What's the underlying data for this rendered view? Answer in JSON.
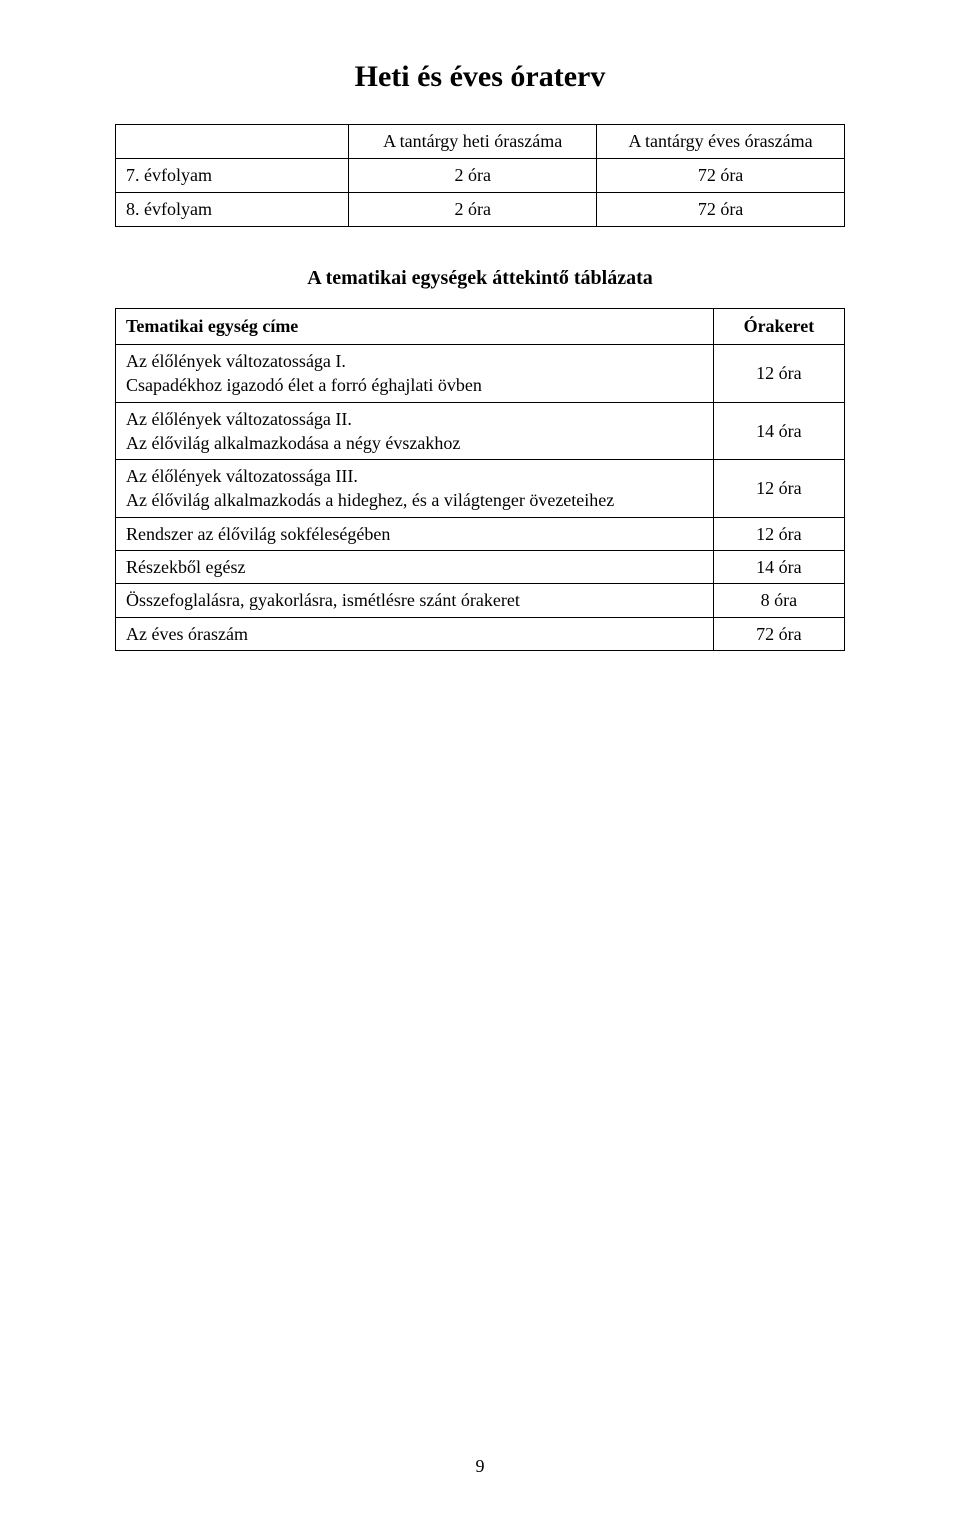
{
  "title": "Heti és éves óraterv",
  "hoursTable": {
    "headers": [
      "",
      "A tantárgy heti óraszáma",
      "A tantárgy éves óraszáma"
    ],
    "rows": [
      {
        "label": "7. évfolyam",
        "weekly": "2 óra",
        "yearly": "72 óra"
      },
      {
        "label": "8. évfolyam",
        "weekly": "2 óra",
        "yearly": "72 óra"
      }
    ]
  },
  "subtitle": "A tematikai egységek áttekintő táblázata",
  "topicsTable": {
    "headers": {
      "topic": "Tematikai egység címe",
      "time": "Órakeret"
    },
    "rows": [
      {
        "line1": "Az élőlények változatossága I.",
        "line2": "Csapadékhoz igazodó élet a forró éghajlati övben",
        "time": "12 óra"
      },
      {
        "line1": "Az élőlények változatossága II.",
        "line2": "Az élővilág alkalmazkodása a négy évszakhoz",
        "time": "14 óra"
      },
      {
        "line1": "Az élőlények változatossága III.",
        "line2": "Az élővilág alkalmazkodás a hideghez, és a világtenger övezeteihez",
        "time": "12 óra"
      },
      {
        "line1": "Rendszer az élővilág sokféleségében",
        "line2": "",
        "time": "12 óra"
      },
      {
        "line1": "Részekből egész",
        "line2": "",
        "time": "14 óra"
      },
      {
        "line1": "Összefoglalásra, gyakorlásra, ismétlésre szánt órakeret",
        "line2": "",
        "time": "8 óra"
      },
      {
        "line1": "Az éves óraszám",
        "line2": "",
        "time": "72 óra"
      }
    ]
  },
  "pageNumber": "9"
}
